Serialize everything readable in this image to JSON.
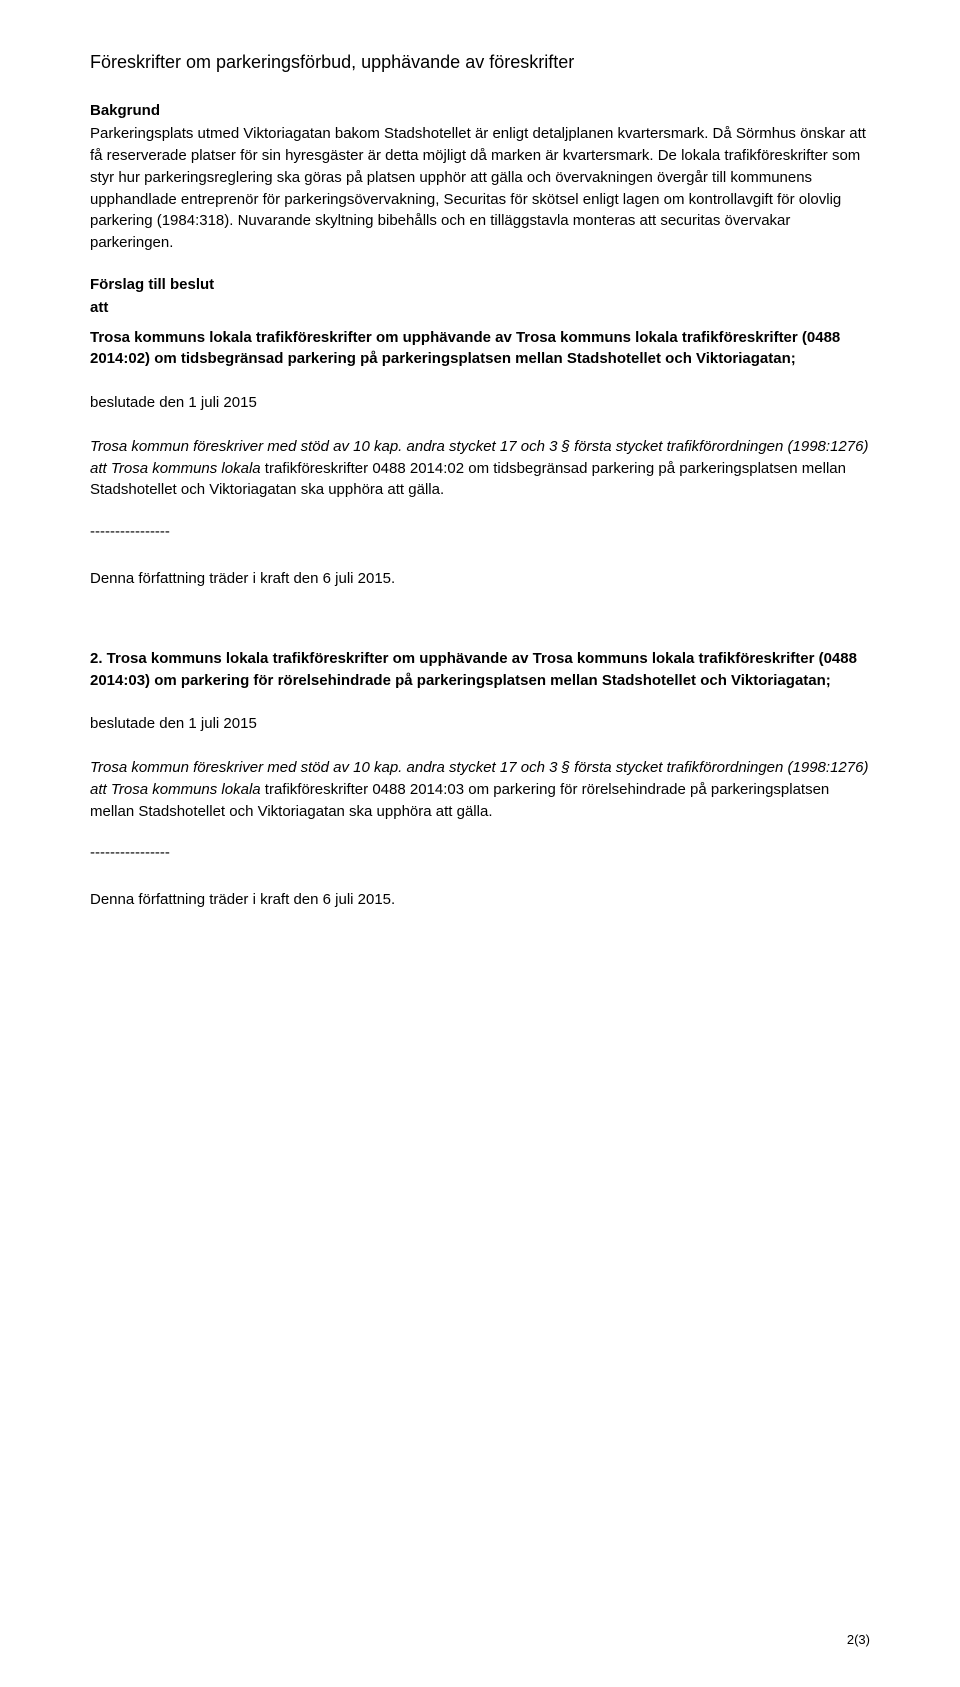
{
  "title": "Föreskrifter om parkeringsförbud, upphävande av föreskrifter",
  "bakgrund_heading": "Bakgrund",
  "bakgrund_text": "Parkeringsplats utmed Viktoriagatan bakom Stadshotellet är enligt detaljplanen kvartersmark. Då Sörmhus önskar att få reserverade platser för sin hyresgäster är detta möjligt då marken är kvartersmark. De lokala trafikföreskrifter som styr hur parkeringsreglering ska göras på platsen upphör att gälla och övervakningen övergår till kommunens upphandlade entreprenör för parkeringsövervakning, Securitas för skötsel enligt lagen om kontrollavgift för olovlig parkering (1984:318). Nuvarande skyltning bibehålls och en tilläggstavla monteras att securitas övervakar parkeringen.",
  "forslag_heading": "Förslag till beslut",
  "att_label": "att",
  "beslut1_title": "Trosa kommuns lokala trafikföreskrifter om upphävande av Trosa kommuns lokala trafikföreskrifter (0488 2014:02) om tidsbegränsad parkering på parkeringsplatsen mellan Stadshotellet och Viktoriagatan;",
  "beslutade_date": "beslutade den 1 juli 2015",
  "stod_prefix": "Trosa kommun föreskriver med stöd av 10 kap. andra stycket 17 och 3 § första stycket trafikförordningen (1998:1276) att Trosa kommuns lokala",
  "beslut1_body": "trafikföreskrifter 0488 2014:02 om tidsbegränsad parkering på parkeringsplatsen mellan Stadshotellet och Viktoriagatan ska upphöra att gälla.",
  "dashes": "----------------",
  "ikraft": "Denna författning träder i kraft den 6 juli 2015.",
  "beslut2_title": "2. Trosa kommuns lokala trafikföreskrifter om upphävande av Trosa kommuns lokala trafikföreskrifter (0488 2014:03) om parkering för rörelsehindrade på parkeringsplatsen mellan Stadshotellet och Viktoriagatan;",
  "beslut2_body": "trafikföreskrifter 0488 2014:03 om parkering för rörelsehindrade på parkeringsplatsen mellan Stadshotellet och Viktoriagatan ska upphöra att gälla.",
  "footer": "2(3)"
}
